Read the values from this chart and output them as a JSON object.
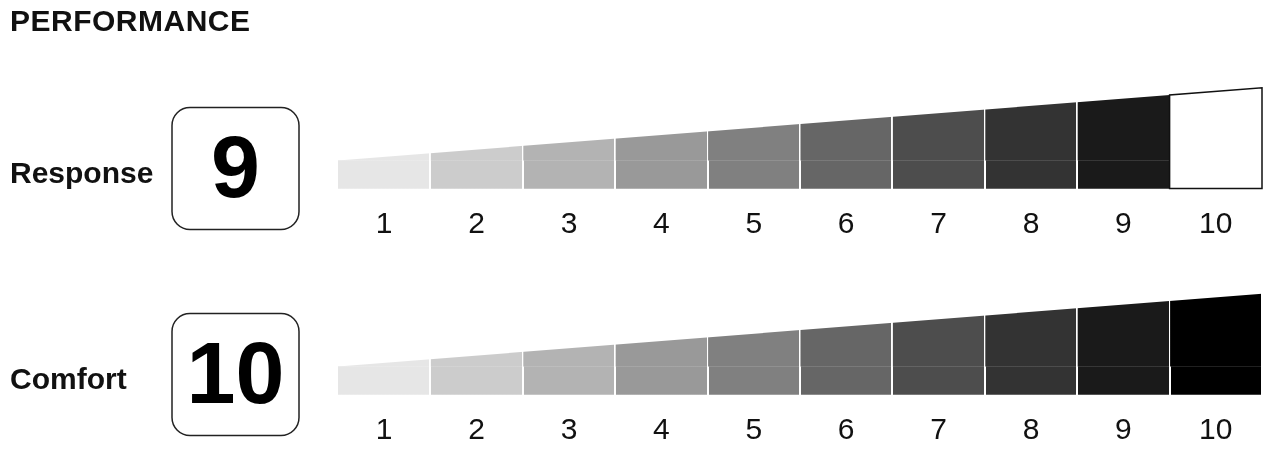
{
  "chart_data": [
    {
      "type": "bar",
      "title": "PERFORMANCE",
      "orientation": "horizontal",
      "categories": [
        "Response"
      ],
      "values": [
        9
      ],
      "color": "#000000",
      "data_labels": true,
      "xlim": [
        0,
        10
      ],
      "xticks": [
        {
          "value": 0.5,
          "label": "1"
        },
        {
          "value": 1.5,
          "label": "2"
        },
        {
          "value": 2.5,
          "label": "3"
        },
        {
          "value": 3.5,
          "label": "4"
        },
        {
          "value": 4.5,
          "label": "5"
        },
        {
          "value": 5.5,
          "label": "6"
        },
        {
          "value": 6.5,
          "label": "7"
        },
        {
          "value": 7.5,
          "label": "8"
        },
        {
          "value": 8.5,
          "label": "9"
        },
        {
          "value": 9.5,
          "label": "10"
        }
      ]
    },
    {
      "type": "bar",
      "orientation": "horizontal",
      "categories": [
        "Comfort"
      ],
      "values": [
        10
      ],
      "color": "#000000",
      "data_labels": true,
      "xlim": [
        0,
        10
      ],
      "xticks": [
        {
          "value": 0.5,
          "label": "1"
        },
        {
          "value": 1.5,
          "label": "2"
        },
        {
          "value": 2.5,
          "label": "3"
        },
        {
          "value": 3.5,
          "label": "4"
        },
        {
          "value": 4.5,
          "label": "5"
        },
        {
          "value": 5.5,
          "label": "6"
        },
        {
          "value": 6.5,
          "label": "7"
        },
        {
          "value": 7.5,
          "label": "8"
        },
        {
          "value": 8.5,
          "label": "9"
        },
        {
          "value": 9.5,
          "label": "10"
        }
      ]
    }
  ]
}
